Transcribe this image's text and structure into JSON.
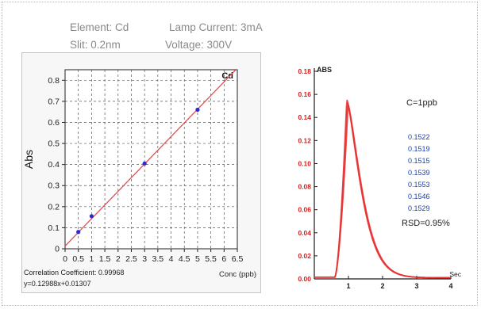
{
  "conditions": {
    "element": "Element: Cd",
    "lamp_current": "Lamp Current: 3mA",
    "slit": "Slit: 0.2nm",
    "voltage": "Voltage: 300V"
  },
  "colors": {
    "fit_line": "#e05050",
    "points": "#2b2bd0",
    "peak": "#e63030",
    "axis_red": "#d21f1f",
    "text_blue": "#1f3ea8",
    "info_gray": "#8a8a8a"
  },
  "chart_data": [
    {
      "type": "scatter",
      "title": "Cd",
      "xlabel": "Conc (ppb)",
      "ylabel": "Abs",
      "xlim": [
        0,
        6.5
      ],
      "ylim": [
        0,
        0.85
      ],
      "grid": true,
      "x_tick_labels": [
        "0",
        "0.5",
        "1",
        "1.5",
        "2",
        "2.5",
        "3",
        "3.5",
        "4",
        "4.5",
        "5",
        "5.5",
        "6",
        "6.5"
      ],
      "y_tick_labels": [
        "0",
        "0.1",
        "0.2",
        "0.3",
        "0.4",
        "0.5",
        "0.6",
        "0.7",
        "0.8"
      ],
      "points": [
        {
          "x": 0.5,
          "y": 0.08
        },
        {
          "x": 1.0,
          "y": 0.155
        },
        {
          "x": 3.0,
          "y": 0.405
        },
        {
          "x": 5.0,
          "y": 0.66
        }
      ],
      "fit": {
        "slope": 0.12988,
        "intercept": 0.01307
      },
      "annotations": {
        "correlation": "Correlation Coefficient: 0.99968",
        "equation": "y=0.12988x+0.01307"
      }
    },
    {
      "type": "line",
      "xlabel": "Sec",
      "ylabel": "ABS",
      "xlim": [
        0,
        4
      ],
      "ylim": [
        0,
        0.18
      ],
      "x_tick_labels": [
        "1",
        "2",
        "3",
        "4"
      ],
      "y_tick_labels": [
        "0.00",
        "0.02",
        "0.04",
        "0.06",
        "0.08",
        "0.10",
        "0.12",
        "0.14",
        "0.16",
        "0.18"
      ],
      "peak_time": 0.95,
      "series": [
        {
          "peak": 0.156
        },
        {
          "peak": 0.1535
        },
        {
          "peak": 0.151
        }
      ],
      "annotations": {
        "concentration": "C=1ppb",
        "replicates": [
          "0.1522",
          "0.1519",
          "0.1515",
          "0.1539",
          "0.1553",
          "0.1546",
          "0.1529"
        ],
        "rsd": "RSD=0.95%"
      }
    }
  ]
}
